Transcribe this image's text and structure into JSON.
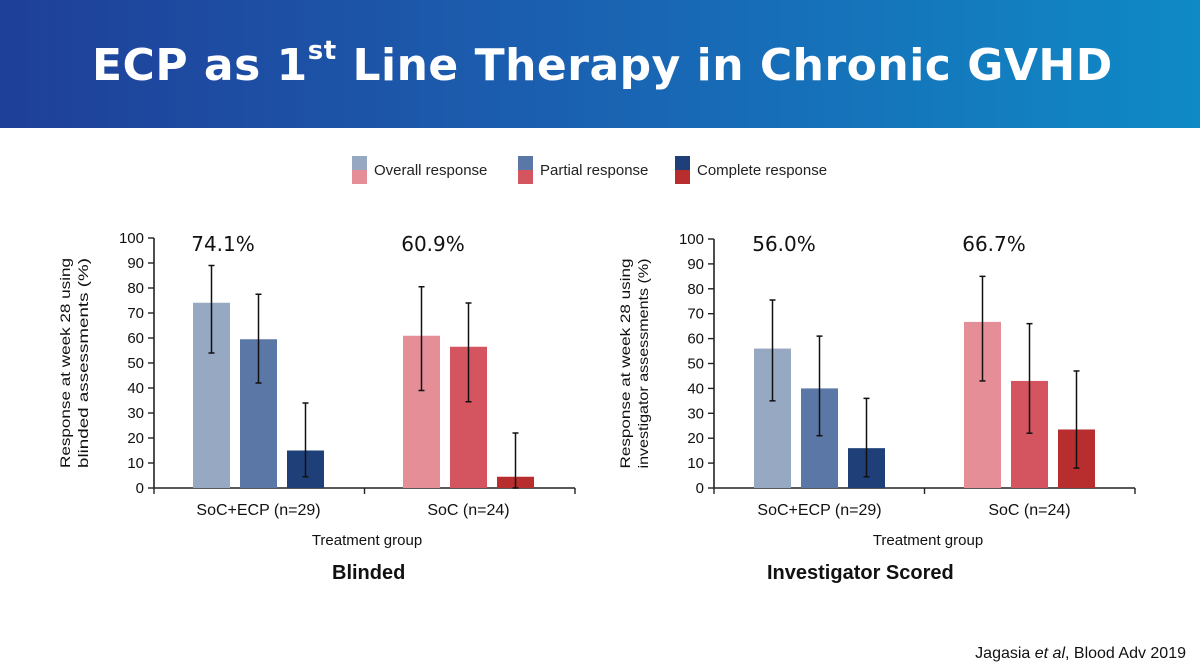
{
  "slide": {
    "title_main": "ECP as 1",
    "title_sup": "st",
    "title_rest": " Line Therapy in Chronic GVHD",
    "citation_author": "Jagasia ",
    "citation_etal": "et al",
    "citation_rest": ", Blood Adv 2019"
  },
  "legend": [
    {
      "label": "Overall response",
      "color_top": "#96a8c2",
      "color_bottom": "#e58e98"
    },
    {
      "label": "Partial response",
      "color_top": "#5b77a6",
      "color_bottom": "#d4545f"
    },
    {
      "label": "Complete response",
      "color_top": "#1e3f78",
      "color_bottom": "#b82e2e"
    }
  ],
  "chart_data": [
    {
      "type": "bar",
      "title": "Blinded",
      "xlabel": "Treatment group",
      "ylabel_lines": [
        "Response at week 28 using",
        "blinded assessments (%)"
      ],
      "ylim": [
        0,
        100
      ],
      "yticks": [
        0,
        10,
        20,
        30,
        40,
        50,
        60,
        70,
        80,
        90,
        100
      ],
      "categories": [
        "SoC+ECP (n=29)",
        "SoC (n=24)"
      ],
      "annotations": [
        "74.1%",
        "60.9%"
      ],
      "series": [
        {
          "name": "Overall response",
          "values": [
            74.1,
            60.9
          ],
          "err_low": [
            54,
            39
          ],
          "err_high": [
            89,
            80.5
          ],
          "colors": [
            "#96a8c2",
            "#e58e98"
          ]
        },
        {
          "name": "Partial response",
          "values": [
            59.5,
            56.5
          ],
          "err_low": [
            42,
            34.5
          ],
          "err_high": [
            77.5,
            74
          ],
          "colors": [
            "#5b77a6",
            "#d4545f"
          ]
        },
        {
          "name": "Complete response",
          "values": [
            15,
            4.5
          ],
          "err_low": [
            4.5,
            0
          ],
          "err_high": [
            34,
            22
          ],
          "colors": [
            "#1e3f78",
            "#b82e2e"
          ]
        }
      ]
    },
    {
      "type": "bar",
      "title": "Investigator Scored",
      "xlabel": "Treatment group",
      "ylabel_lines": [
        "Response at week 28 using",
        "investigator assessments (%)"
      ],
      "ylim": [
        0,
        100
      ],
      "yticks": [
        0,
        10,
        20,
        30,
        40,
        50,
        60,
        70,
        80,
        90,
        100
      ],
      "categories": [
        "SoC+ECP (n=29)",
        "SoC (n=24)"
      ],
      "annotations": [
        "56.0%",
        "66.7%"
      ],
      "series": [
        {
          "name": "Overall response",
          "values": [
            56.0,
            66.7
          ],
          "err_low": [
            35,
            43
          ],
          "err_high": [
            75.5,
            85
          ],
          "colors": [
            "#96a8c2",
            "#e58e98"
          ]
        },
        {
          "name": "Partial response",
          "values": [
            40,
            43
          ],
          "err_low": [
            21,
            22
          ],
          "err_high": [
            61,
            66
          ],
          "colors": [
            "#5b77a6",
            "#d4545f"
          ]
        },
        {
          "name": "Complete response",
          "values": [
            16,
            23.5
          ],
          "err_low": [
            4.5,
            8
          ],
          "err_high": [
            36,
            47
          ],
          "colors": [
            "#1e3f78",
            "#b82e2e"
          ]
        }
      ]
    }
  ]
}
